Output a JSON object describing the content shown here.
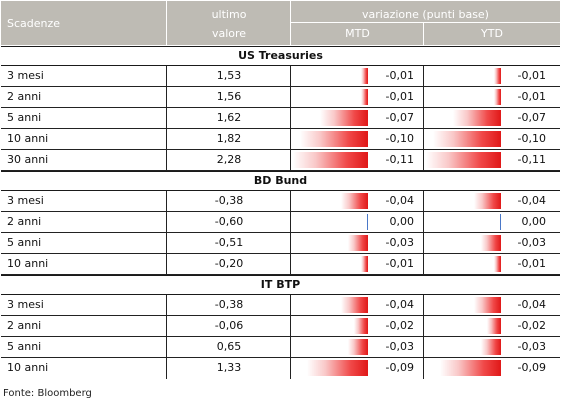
{
  "header": {
    "col1": "Scadenze",
    "col2_line1": "ultimo",
    "col2_line2": "valore",
    "variation_group": "variazione (punti base)",
    "mtd": "MTD",
    "ytd": "YTD"
  },
  "colors": {
    "header_bg": "#bebbb4",
    "bar_red": "#e01818",
    "zero_line": "#4a78c8"
  },
  "sections": [
    {
      "title": "US Treasuries",
      "rows": [
        {
          "label": "3 mesi",
          "value": "1,53",
          "mtd": "-0,01",
          "ytd": "-0,01"
        },
        {
          "label": "2 anni",
          "value": "1,56",
          "mtd": "-0,01",
          "ytd": "-0,01"
        },
        {
          "label": "5 anni",
          "value": "1,62",
          "mtd": "-0,07",
          "ytd": "-0,07"
        },
        {
          "label": "10 anni",
          "value": "1,82",
          "mtd": "-0,10",
          "ytd": "-0,10"
        },
        {
          "label": "30 anni",
          "value": "2,28",
          "mtd": "-0,11",
          "ytd": "-0,11"
        }
      ]
    },
    {
      "title": "BD Bund",
      "rows": [
        {
          "label": "3 mesi",
          "value": "-0,38",
          "mtd": "-0,04",
          "ytd": "-0,04"
        },
        {
          "label": "2 anni",
          "value": "-0,60",
          "mtd": "0,00",
          "ytd": "0,00"
        },
        {
          "label": "5 anni",
          "value": "-0,51",
          "mtd": "-0,03",
          "ytd": "-0,03"
        },
        {
          "label": "10 anni",
          "value": "-0,20",
          "mtd": "-0,01",
          "ytd": "-0,01"
        }
      ]
    },
    {
      "title": "IT BTP",
      "rows": [
        {
          "label": "3 mesi",
          "value": "-0,38",
          "mtd": "-0,04",
          "ytd": "-0,04"
        },
        {
          "label": "2 anni",
          "value": "-0,06",
          "mtd": "-0,02",
          "ytd": "-0,02"
        },
        {
          "label": "5 anni",
          "value": "0,65",
          "mtd": "-0,03",
          "ytd": "-0,03"
        },
        {
          "label": "10 anni",
          "value": "1,33",
          "mtd": "-0,09",
          "ytd": "-0,09"
        }
      ]
    }
  ],
  "source": "Fonte: Bloomberg"
}
